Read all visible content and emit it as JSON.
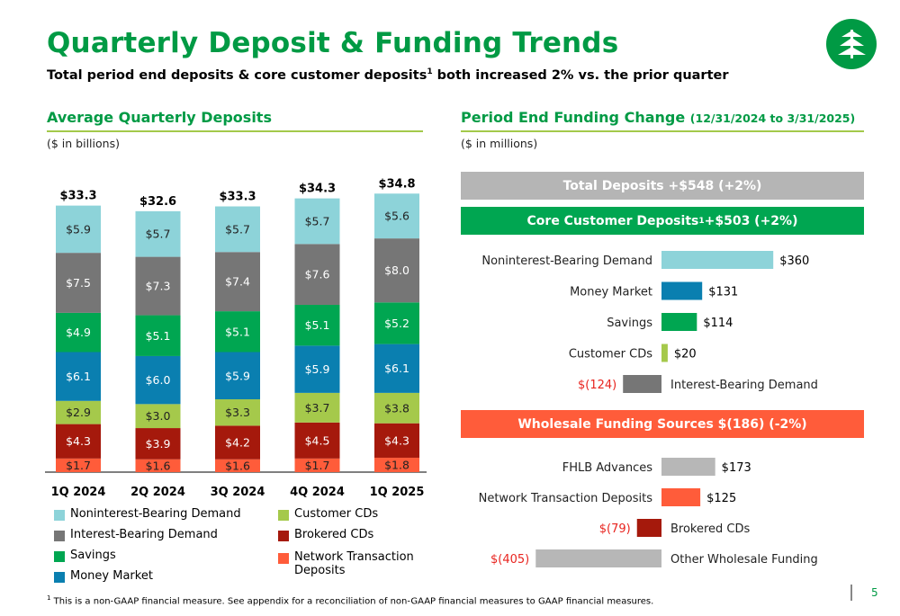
{
  "header": {
    "title": "Quarterly Deposit & Funding Trends",
    "subtitle": "Total period end deposits & core customer deposits",
    "subtitle_sup": "1",
    "subtitle_end": " both increased 2% vs. the prior quarter"
  },
  "left_section": {
    "heading": "Average Quarterly Deposits",
    "unit": "($ in billions)"
  },
  "right_section": {
    "heading": "Period End Funding Change",
    "heading_note": "(12/31/2024 to 3/31/2025)",
    "unit": "($ in millions)"
  },
  "colors": {
    "brand_green": "#009a44",
    "rule_green": "#a3c94a",
    "noninterest_bearing_demand": "#8dd3d9",
    "interest_bearing_demand": "#767676",
    "savings": "#00a651",
    "money_market": "#0a7fb0",
    "customer_cds": "#a5c94b",
    "brokered_cds": "#a5190c",
    "network_transaction_deposits": "#ff5c3a",
    "fhlb_advances": "#b7b7b7",
    "other_wholesale_funding": "#b7b7b7",
    "negative_value_text": "#e8241f",
    "total_deposits_banner": "#b5b5b5",
    "core_banner": "#00a651",
    "wholesale_banner": "#ff5c3a"
  },
  "chart_data": [
    {
      "type": "bar",
      "stacked": true,
      "categories": [
        "1Q 2024",
        "2Q 2024",
        "3Q 2024",
        "4Q 2024",
        "1Q 2025"
      ],
      "totals": [
        "$33.3",
        "$32.6",
        "$33.3",
        "$34.3",
        "$34.8"
      ],
      "total_values": [
        33.3,
        32.6,
        33.3,
        34.3,
        34.8
      ],
      "series": [
        {
          "name": "Network Transaction Deposits",
          "color_key": "network_transaction_deposits",
          "values": [
            1.7,
            1.6,
            1.6,
            1.7,
            1.8
          ],
          "labels": [
            "$1.7",
            "$1.6",
            "$1.6",
            "$1.7",
            "$1.8"
          ]
        },
        {
          "name": "Brokered CDs",
          "color_key": "brokered_cds",
          "values": [
            4.3,
            3.9,
            4.2,
            4.5,
            4.3
          ],
          "labels": [
            "$4.3",
            "$3.9",
            "$4.2",
            "$4.5",
            "$4.3"
          ]
        },
        {
          "name": "Customer CDs",
          "color_key": "customer_cds",
          "values": [
            2.9,
            3.0,
            3.3,
            3.7,
            3.8
          ],
          "labels": [
            "$2.9",
            "$3.0",
            "$3.3",
            "$3.7",
            "$3.8"
          ]
        },
        {
          "name": "Money Market",
          "color_key": "money_market",
          "values": [
            6.1,
            6.0,
            5.9,
            5.9,
            6.1
          ],
          "labels": [
            "$6.1",
            "$6.0",
            "$5.9",
            "$5.9",
            "$6.1"
          ]
        },
        {
          "name": "Savings",
          "color_key": "savings",
          "values": [
            4.9,
            5.1,
            5.1,
            5.1,
            5.2
          ],
          "labels": [
            "$4.9",
            "$5.1",
            "$5.1",
            "$5.1",
            "$5.2"
          ]
        },
        {
          "name": "Interest-Bearing Demand",
          "color_key": "interest_bearing_demand",
          "values": [
            7.5,
            7.3,
            7.4,
            7.6,
            8.0
          ],
          "labels": [
            "$7.5",
            "$7.3",
            "$7.4",
            "$7.6",
            "$8.0"
          ]
        },
        {
          "name": "Noninterest-Bearing Demand",
          "color_key": "noninterest_bearing_demand",
          "values": [
            5.9,
            5.7,
            5.7,
            5.7,
            5.6
          ],
          "labels": [
            "$5.9",
            "$5.7",
            "$5.7",
            "$5.7",
            "$5.6"
          ]
        }
      ],
      "legend": [
        {
          "name": "Noninterest-Bearing Demand",
          "color_key": "noninterest_bearing_demand"
        },
        {
          "name": "Interest-Bearing Demand",
          "color_key": "interest_bearing_demand"
        },
        {
          "name": "Savings",
          "color_key": "savings"
        },
        {
          "name": "Money Market",
          "color_key": "money_market"
        },
        {
          "name": "Customer CDs",
          "color_key": "customer_cds"
        },
        {
          "name": "Brokered CDs",
          "color_key": "brokered_cds"
        },
        {
          "name": "Network Transaction Deposits",
          "color_key": "network_transaction_deposits"
        }
      ]
    },
    {
      "type": "bar",
      "orientation": "horizontal",
      "group_banner_top": "Total Deposits +$548 (+2%)",
      "group_banner": "Core Customer Deposits",
      "group_banner_sup": "1",
      "group_banner_end": " +$503 (+2%)",
      "items": [
        {
          "name": "Noninterest-Bearing Demand",
          "value": 360,
          "label": "$360",
          "color_key": "noninterest_bearing_demand"
        },
        {
          "name": "Money Market",
          "value": 131,
          "label": "$131",
          "color_key": "money_market"
        },
        {
          "name": "Savings",
          "value": 114,
          "label": "$114",
          "color_key": "savings"
        },
        {
          "name": "Customer CDs",
          "value": 20,
          "label": "$20",
          "color_key": "customer_cds"
        },
        {
          "name": "Interest-Bearing Demand",
          "value": -124,
          "label": "$(124)",
          "color_key": "interest_bearing_demand"
        }
      ]
    },
    {
      "type": "bar",
      "orientation": "horizontal",
      "group_banner": "Wholesale Funding Sources $(186) (-2%)",
      "items": [
        {
          "name": "FHLB Advances",
          "value": 173,
          "label": "$173",
          "color_key": "fhlb_advances"
        },
        {
          "name": "Network Transaction Deposits",
          "value": 125,
          "label": "$125",
          "color_key": "network_transaction_deposits"
        },
        {
          "name": "Brokered CDs",
          "value": -79,
          "label": "$(79)",
          "color_key": "brokered_cds"
        },
        {
          "name": "Other Wholesale Funding",
          "value": -405,
          "label": "$(405)",
          "color_key": "other_wholesale_funding"
        }
      ]
    }
  ],
  "footer": {
    "footnote_sup": "1",
    "footnote": " This is a non-GAAP financial measure. See appendix for a reconciliation of non-GAAP financial measures to GAAP financial measures.",
    "page_number": "5"
  }
}
